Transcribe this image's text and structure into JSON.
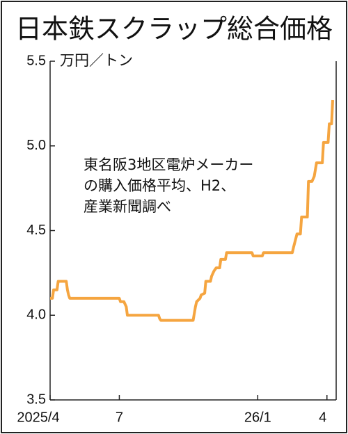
{
  "chart_data": {
    "type": "line",
    "title": "日本鉄スクラップ総合価格",
    "y_unit": "万円／トン",
    "annotation": [
      "東名阪3地区電炉メーカー",
      "の購入価格平均、H2、",
      "産業新聞調べ"
    ],
    "x": [
      0,
      0.1,
      0.15,
      0.3,
      0.35,
      0.7,
      0.75,
      0.8,
      0.85,
      3.0,
      3.05,
      3.2,
      3.3,
      3.35,
      4.7,
      4.75,
      4.8,
      6.2,
      6.3,
      6.35,
      6.5,
      6.55,
      6.7,
      6.75,
      6.95,
      7.0,
      7.1,
      7.2,
      7.35,
      7.4,
      7.6,
      7.65,
      8.75,
      8.8,
      9.2,
      9.25,
      10.5,
      10.55,
      10.7,
      10.85,
      10.9,
      11.15,
      11.2,
      11.35,
      11.45,
      11.55,
      11.8,
      11.85,
      12.05,
      12.1,
      12.2,
      12.25
    ],
    "series": [
      {
        "color": "#f5a540",
        "values": [
          4.1,
          4.1,
          4.15,
          4.15,
          4.2,
          4.2,
          4.15,
          4.12,
          4.1,
          4.1,
          4.08,
          4.08,
          4.05,
          4.0,
          4.0,
          3.98,
          3.97,
          3.97,
          4.05,
          4.08,
          4.1,
          4.12,
          4.13,
          4.2,
          4.2,
          4.23,
          4.26,
          4.28,
          4.28,
          4.33,
          4.33,
          4.37,
          4.37,
          4.35,
          4.35,
          4.37,
          4.37,
          4.4,
          4.48,
          4.48,
          4.58,
          4.58,
          4.79,
          4.79,
          4.82,
          4.9,
          4.9,
          5.02,
          5.02,
          5.13,
          5.13,
          5.27
        ]
      }
    ],
    "xlim": [
      0,
      12.4
    ],
    "xticks": [
      {
        "value": 0,
        "label": "2025/4"
      },
      {
        "value": 3,
        "label": "7"
      },
      {
        "value": 9,
        "label": "26/1"
      },
      {
        "value": 12,
        "label": "4"
      }
    ],
    "ylim": [
      3.5,
      5.5
    ],
    "yticks": [
      3.5,
      {
        "value": 4,
        "label": "4.0"
      },
      4.5,
      {
        "value": 5,
        "label": "5.0"
      },
      5.5
    ],
    "grid": false
  }
}
